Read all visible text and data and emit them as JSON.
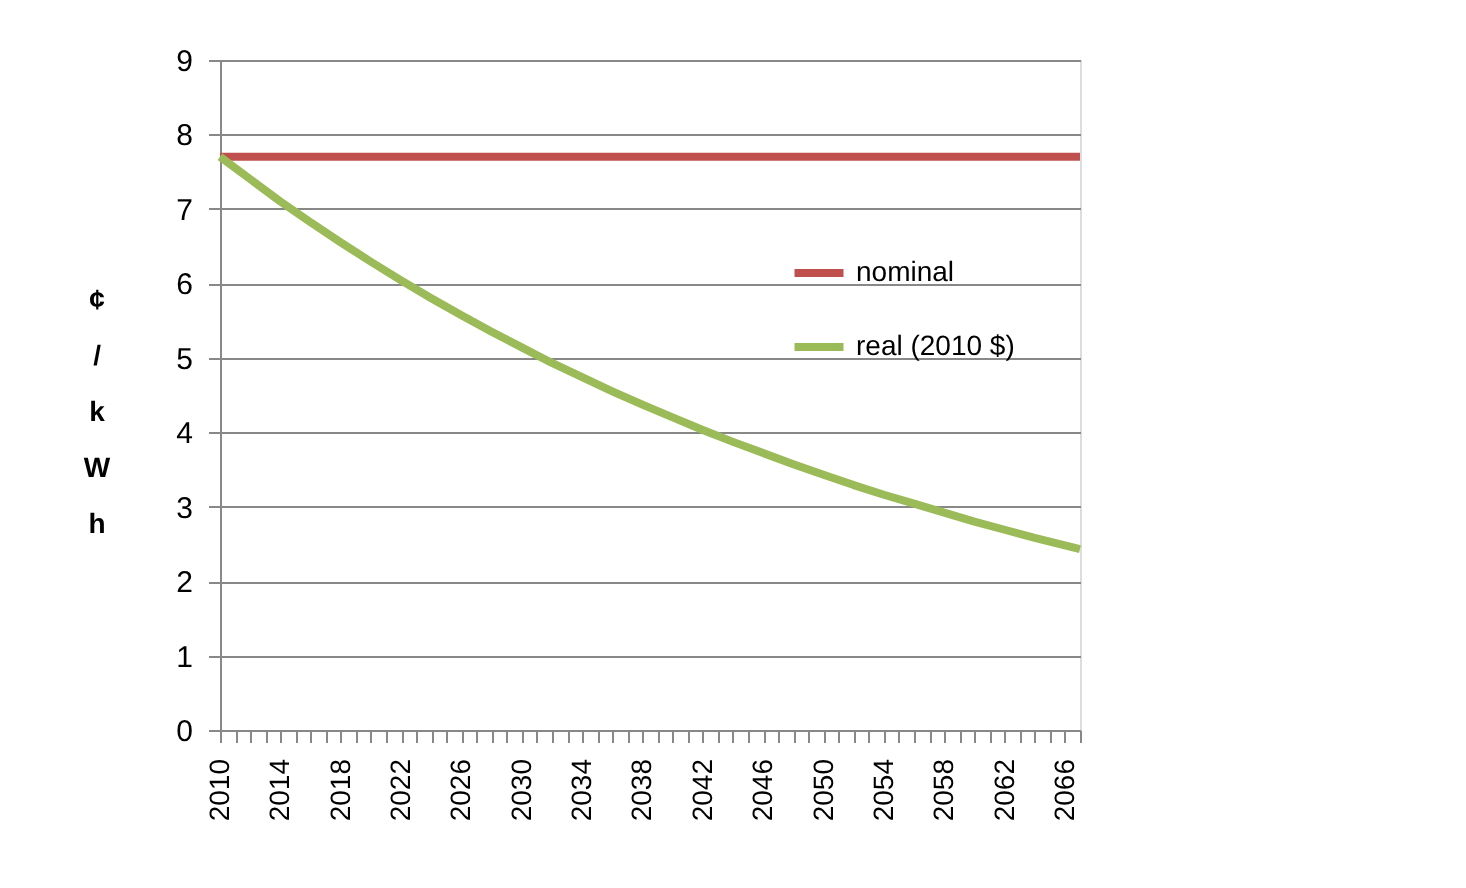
{
  "chart_data": {
    "type": "line",
    "ylabel": "¢/kWh",
    "x": [
      2010,
      2012,
      2014,
      2016,
      2018,
      2020,
      2022,
      2024,
      2026,
      2028,
      2030,
      2032,
      2034,
      2036,
      2038,
      2040,
      2042,
      2044,
      2046,
      2048,
      2050,
      2052,
      2054,
      2056,
      2058,
      2060,
      2062,
      2064,
      2066,
      2067
    ],
    "series": [
      {
        "name": "nominal",
        "color": "#c0504d",
        "values": [
          7.7,
          7.7,
          7.7,
          7.7,
          7.7,
          7.7,
          7.7,
          7.7,
          7.7,
          7.7,
          7.7,
          7.7,
          7.7,
          7.7,
          7.7,
          7.7,
          7.7,
          7.7,
          7.7,
          7.7,
          7.7,
          7.7,
          7.7,
          7.7,
          7.7,
          7.7,
          7.7,
          7.7,
          7.7,
          7.7
        ]
      },
      {
        "name": "real (2010 $)",
        "color": "#9bbb59",
        "values": [
          7.7,
          7.4,
          7.1,
          6.82,
          6.55,
          6.29,
          6.04,
          5.8,
          5.57,
          5.35,
          5.14,
          4.93,
          4.74,
          4.55,
          4.37,
          4.2,
          4.03,
          3.87,
          3.72,
          3.57,
          3.43,
          3.29,
          3.16,
          3.04,
          2.92,
          2.8,
          2.69,
          2.58,
          2.48,
          2.43
        ]
      }
    ],
    "xlim": [
      2010,
      2067
    ],
    "xticks": [
      2010,
      {
        "value": 2011,
        "label": null
      },
      {
        "value": 2012,
        "label": null
      },
      {
        "value": 2013,
        "label": null
      },
      2014,
      {
        "value": 2015,
        "label": null
      },
      {
        "value": 2016,
        "label": null
      },
      {
        "value": 2017,
        "label": null
      },
      2018,
      {
        "value": 2019,
        "label": null
      },
      {
        "value": 2020,
        "label": null
      },
      {
        "value": 2021,
        "label": null
      },
      2022,
      {
        "value": 2023,
        "label": null
      },
      {
        "value": 2024,
        "label": null
      },
      {
        "value": 2025,
        "label": null
      },
      2026,
      {
        "value": 2027,
        "label": null
      },
      {
        "value": 2028,
        "label": null
      },
      {
        "value": 2029,
        "label": null
      },
      2030,
      {
        "value": 2031,
        "label": null
      },
      {
        "value": 2032,
        "label": null
      },
      {
        "value": 2033,
        "label": null
      },
      2034,
      {
        "value": 2035,
        "label": null
      },
      {
        "value": 2036,
        "label": null
      },
      {
        "value": 2037,
        "label": null
      },
      2038,
      {
        "value": 2039,
        "label": null
      },
      {
        "value": 2040,
        "label": null
      },
      {
        "value": 2041,
        "label": null
      },
      2042,
      {
        "value": 2043,
        "label": null
      },
      {
        "value": 2044,
        "label": null
      },
      {
        "value": 2045,
        "label": null
      },
      2046,
      {
        "value": 2047,
        "label": null
      },
      {
        "value": 2048,
        "label": null
      },
      {
        "value": 2049,
        "label": null
      },
      2050,
      {
        "value": 2051,
        "label": null
      },
      {
        "value": 2052,
        "label": null
      },
      {
        "value": 2053,
        "label": null
      },
      2054,
      {
        "value": 2055,
        "label": null
      },
      {
        "value": 2056,
        "label": null
      },
      {
        "value": 2057,
        "label": null
      },
      2058,
      {
        "value": 2059,
        "label": null
      },
      {
        "value": 2060,
        "label": null
      },
      {
        "value": 2061,
        "label": null
      },
      2062,
      {
        "value": 2063,
        "label": null
      },
      {
        "value": 2064,
        "label": null
      },
      {
        "value": 2065,
        "label": null
      },
      2066,
      {
        "value": 2067,
        "label": null
      }
    ],
    "ylim": [
      0,
      9
    ],
    "yticks": [
      0,
      1,
      2,
      3,
      4,
      5,
      6,
      7,
      8,
      9
    ],
    "grid": "y",
    "legend": "right",
    "marker": "none",
    "line_style": "solid"
  }
}
